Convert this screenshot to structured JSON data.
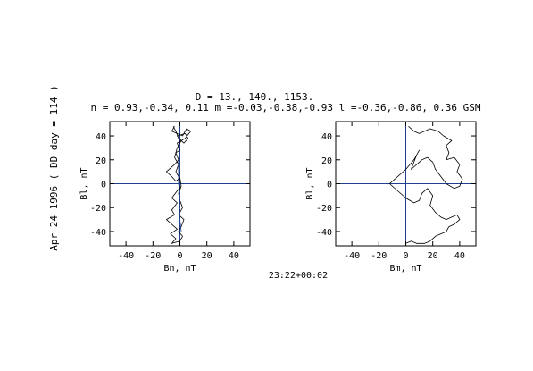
{
  "header": {
    "line1": "D =   13.,  140., 1153.",
    "line2": "n = 0.93,-0.34, 0.11  m =-0.03,-0.38,-0.93  l =-0.36,-0.86, 0.36 GSM"
  },
  "side_label": "Apr 24 1996  ( DD day = 114 )",
  "time_range": "23:22+00:02",
  "colors": {
    "trace": "#000000",
    "axis_line": "#1f3f8f",
    "frame": "#000000"
  },
  "chart_data": [
    {
      "type": "line",
      "title": "",
      "xlabel": "Bn, nT",
      "ylabel": "Bl, nT",
      "xlim": [
        -52,
        52
      ],
      "ylim": [
        -52,
        52
      ],
      "xticks": [
        -40,
        -20,
        0,
        20,
        40
      ],
      "yticks": [
        -40,
        -20,
        0,
        20,
        40
      ],
      "xtick_labels": [
        "-40",
        "-20",
        "0",
        "20",
        "40"
      ],
      "ytick_labels": [
        "-40",
        "-20",
        "0",
        "20",
        "40"
      ],
      "zero_lines": true,
      "series": [
        {
          "points": [
            [
              -4,
              48
            ],
            [
              -6,
              44
            ],
            [
              2,
              40
            ],
            [
              5,
              46
            ],
            [
              8,
              44
            ],
            [
              4,
              38
            ],
            [
              -2,
              34
            ],
            [
              0,
              28
            ],
            [
              -3,
              26
            ],
            [
              -1,
              20
            ],
            [
              -4,
              16
            ],
            [
              -10,
              10
            ],
            [
              -6,
              6
            ],
            [
              -3,
              2
            ],
            [
              0,
              5
            ],
            [
              1,
              -2
            ],
            [
              -2,
              -6
            ],
            [
              -6,
              -12
            ],
            [
              -2,
              -16
            ],
            [
              -6,
              -22
            ],
            [
              -4,
              -26
            ],
            [
              -10,
              -30
            ],
            [
              -6,
              -34
            ],
            [
              -2,
              -38
            ],
            [
              -7,
              -42
            ],
            [
              -3,
              -46
            ],
            [
              -6,
              -50
            ],
            [
              0,
              -48
            ],
            [
              2,
              -44
            ],
            [
              -1,
              -40
            ],
            [
              1,
              -36
            ],
            [
              3,
              -30
            ],
            [
              -1,
              -26
            ],
            [
              2,
              -20
            ],
            [
              0,
              -14
            ],
            [
              -1,
              -8
            ],
            [
              1,
              -2
            ],
            [
              0,
              4
            ],
            [
              -3,
              10
            ],
            [
              -1,
              16
            ],
            [
              -4,
              22
            ],
            [
              -2,
              30
            ],
            [
              1,
              36
            ],
            [
              -2,
              40
            ],
            [
              4,
              42
            ],
            [
              6,
              38
            ],
            [
              3,
              34
            ],
            [
              -1,
              38
            ],
            [
              -3,
              44
            ],
            [
              -5,
              48
            ]
          ]
        },
        {
          "points": [
            [
              -1,
              20
            ],
            [
              -1,
              0
            ],
            [
              0,
              -10
            ],
            [
              0,
              -30
            ],
            [
              1,
              -40
            ]
          ]
        }
      ]
    },
    {
      "type": "line",
      "title": "",
      "xlabel": "Bm, nT",
      "ylabel": "Bl, nT",
      "xlim": [
        -52,
        52
      ],
      "ylim": [
        -52,
        52
      ],
      "xticks": [
        -40,
        -20,
        0,
        20,
        40
      ],
      "yticks": [
        -40,
        -20,
        0,
        20,
        40
      ],
      "xtick_labels": [
        "-40",
        "-20",
        "0",
        "20",
        "40"
      ],
      "ytick_labels": [
        "-40",
        "-20",
        "0",
        "20",
        "40"
      ],
      "zero_lines": true,
      "series": [
        {
          "points": [
            [
              2,
              48
            ],
            [
              6,
              44
            ],
            [
              10,
              42
            ],
            [
              18,
              46
            ],
            [
              24,
              44
            ],
            [
              28,
              40
            ],
            [
              34,
              36
            ],
            [
              30,
              32
            ],
            [
              32,
              26
            ],
            [
              30,
              20
            ],
            [
              36,
              22
            ],
            [
              40,
              16
            ],
            [
              38,
              10
            ],
            [
              42,
              4
            ],
            [
              40,
              -2
            ],
            [
              36,
              -4
            ],
            [
              30,
              0
            ],
            [
              26,
              6
            ],
            [
              22,
              12
            ],
            [
              20,
              18
            ],
            [
              16,
              22
            ],
            [
              12,
              20
            ],
            [
              8,
              16
            ],
            [
              4,
              12
            ],
            [
              8,
              24
            ],
            [
              10,
              28
            ],
            [
              6,
              20
            ],
            [
              0,
              12
            ],
            [
              -8,
              4
            ],
            [
              -12,
              0
            ],
            [
              -6,
              -6
            ],
            [
              0,
              -12
            ],
            [
              6,
              -16
            ],
            [
              10,
              -14
            ],
            [
              12,
              -8
            ],
            [
              16,
              -4
            ],
            [
              20,
              -10
            ],
            [
              18,
              -18
            ],
            [
              22,
              -24
            ],
            [
              26,
              -28
            ],
            [
              30,
              -30
            ],
            [
              34,
              -28
            ],
            [
              38,
              -26
            ],
            [
              40,
              -30
            ],
            [
              36,
              -34
            ],
            [
              32,
              -36
            ],
            [
              30,
              -40
            ],
            [
              26,
              -42
            ],
            [
              22,
              -44
            ],
            [
              18,
              -48
            ],
            [
              14,
              -50
            ],
            [
              8,
              -50
            ],
            [
              4,
              -48
            ],
            [
              0,
              -50
            ]
          ]
        }
      ]
    }
  ]
}
